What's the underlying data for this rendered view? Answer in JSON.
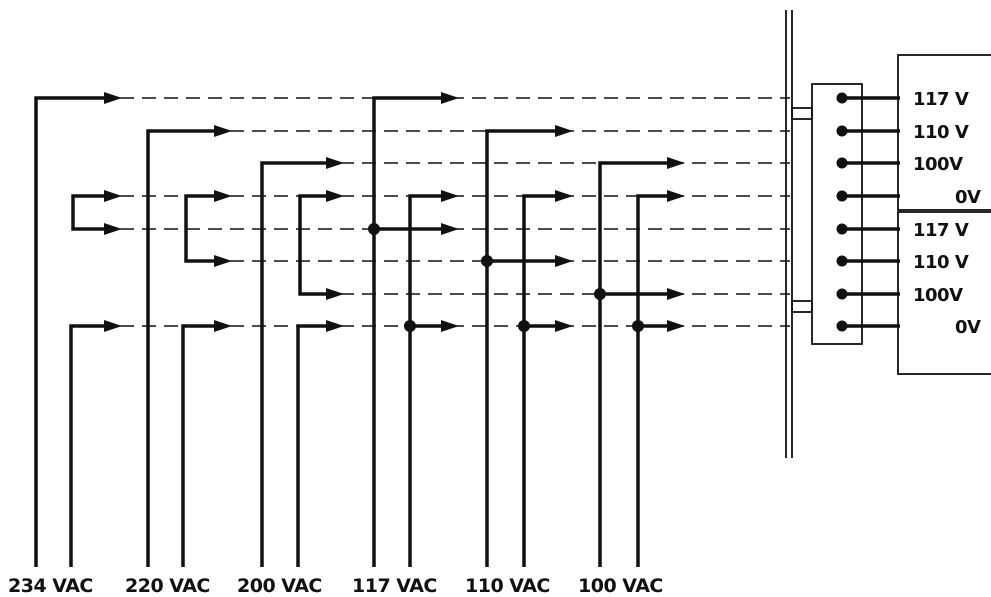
{
  "inputs": [
    {
      "label": "234 VAC"
    },
    {
      "label": "220 VAC"
    },
    {
      "label": "200 VAC"
    },
    {
      "label": "117 VAC"
    },
    {
      "label": "110 VAC"
    },
    {
      "label": "100 VAC"
    }
  ],
  "terminals": [
    {
      "label": "117 V"
    },
    {
      "label": "110 V"
    },
    {
      "label": "100V"
    },
    {
      "label": "0V"
    },
    {
      "label": "117 V"
    },
    {
      "label": "110 V"
    },
    {
      "label": "100V"
    },
    {
      "label": "0V"
    }
  ]
}
